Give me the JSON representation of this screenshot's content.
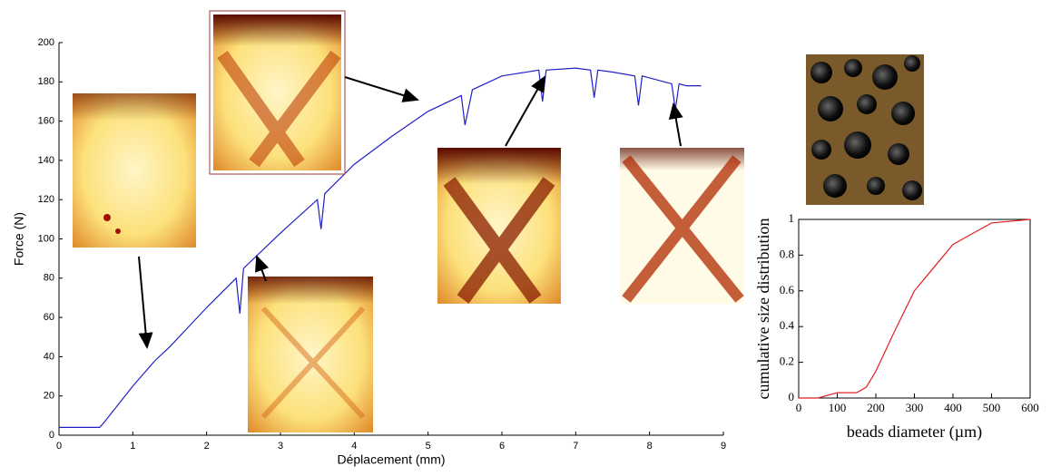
{
  "chart_data": [
    {
      "type": "line",
      "xlabel": "Déplacement (mm)",
      "ylabel": "Force (N)",
      "xlim": [
        0,
        9
      ],
      "ylim": [
        0,
        200
      ],
      "xticks": [
        0,
        1,
        2,
        3,
        4,
        5,
        6,
        7,
        8,
        9
      ],
      "yticks": [
        0,
        20,
        40,
        60,
        80,
        100,
        120,
        140,
        160,
        180,
        200
      ],
      "series": [
        {
          "color": "#1f1fc8",
          "x": [
            0,
            0.55,
            0.6,
            1,
            1.3,
            1.5,
            2,
            2.4,
            2.45,
            2.5,
            3,
            3.5,
            3.55,
            3.6,
            4,
            4.5,
            5,
            5.45,
            5.5,
            5.6,
            6,
            6.5,
            6.55,
            6.6,
            7,
            7.2,
            7.25,
            7.3,
            7.5,
            7.8,
            7.85,
            7.9,
            8,
            8.3,
            8.35,
            8.4,
            8.5,
            8.7
          ],
          "values": [
            4,
            4,
            6,
            25,
            38,
            45,
            65,
            80,
            62,
            85,
            103,
            120,
            105,
            123,
            138,
            152,
            165,
            173,
            158,
            176,
            183,
            186,
            170,
            186,
            187,
            186,
            172,
            186,
            185,
            183,
            168,
            183,
            182,
            179,
            166,
            179,
            178,
            178
          ]
        }
      ]
    },
    {
      "type": "line",
      "xlabel": "beads diameter (µm)",
      "ylabel": "cumulative size distribution",
      "xlim": [
        0,
        600
      ],
      "ylim": [
        0,
        1
      ],
      "xticks": [
        0,
        100,
        200,
        300,
        400,
        500,
        600
      ],
      "yticks": [
        0,
        0.2,
        0.4,
        0.6,
        0.8,
        1
      ],
      "series": [
        {
          "color": "#e02020",
          "x": [
            0,
            50,
            100,
            150,
            175,
            200,
            250,
            300,
            350,
            400,
            450,
            500,
            600
          ],
          "values": [
            0,
            0,
            0.03,
            0.03,
            0.06,
            0.15,
            0.38,
            0.6,
            0.73,
            0.86,
            0.92,
            0.98,
            1
          ]
        }
      ]
    }
  ]
}
